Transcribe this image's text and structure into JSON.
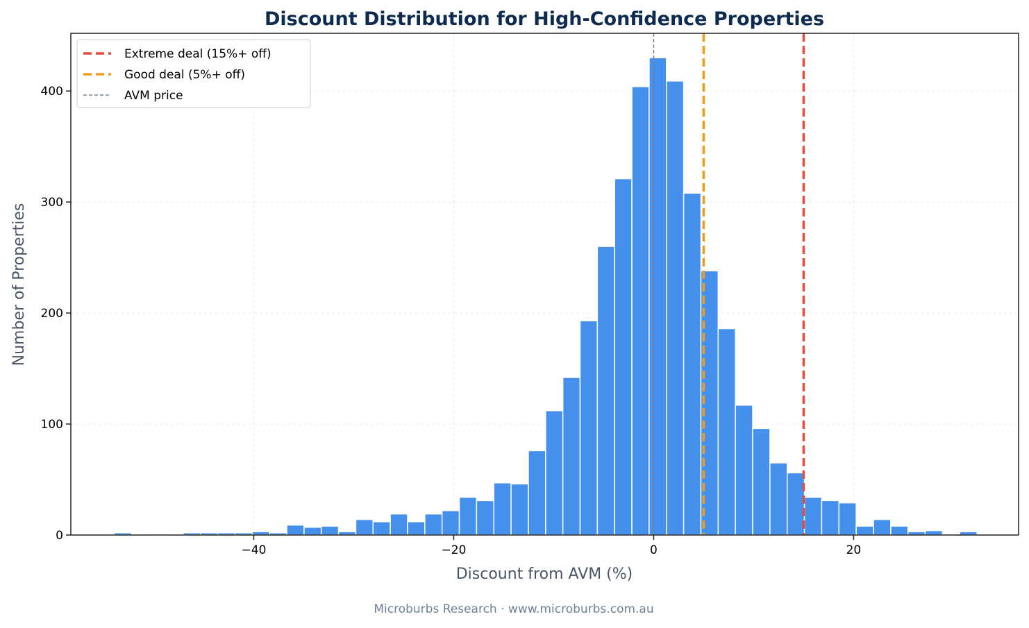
{
  "chart_data": {
    "type": "bar",
    "subtype": "histogram",
    "title": "Discount Distribution for High-Confidence Properties",
    "xlabel": "Discount from AVM (%)",
    "ylabel": "Number of Properties",
    "xlim": [
      -58.3,
      36.5
    ],
    "ylim": [
      0,
      452
    ],
    "xticks": [
      -40,
      -20,
      0,
      20
    ],
    "yticks": [
      0,
      100,
      200,
      300,
      400
    ],
    "grid": true,
    "bin_start": -53.96,
    "bin_width": 1.726,
    "counts": [
      2,
      0,
      1,
      0,
      2,
      2,
      2,
      2,
      3,
      2,
      9,
      7,
      8,
      3,
      14,
      12,
      19,
      12,
      19,
      22,
      34,
      31,
      47,
      46,
      76,
      112,
      142,
      193,
      260,
      321,
      404,
      430,
      409,
      308,
      238,
      186,
      117,
      96,
      65,
      56,
      34,
      31,
      29,
      8,
      14,
      8,
      3,
      4,
      1,
      3
    ],
    "bar_color": "#4590ec",
    "reference_lines": [
      {
        "name": "Extreme deal (15%+ off)",
        "x": 15,
        "color": "#e74c3c",
        "style": "dashed"
      },
      {
        "name": "Good deal (5%+ off)",
        "x": 5,
        "color": "#f39c12",
        "style": "dashed"
      },
      {
        "name": "AVM price",
        "x": 0,
        "color": "#708090",
        "style": "dashed-thin"
      }
    ],
    "legend_position": "top-left"
  },
  "footer": "Microburbs Research · www.microburbs.com.au"
}
